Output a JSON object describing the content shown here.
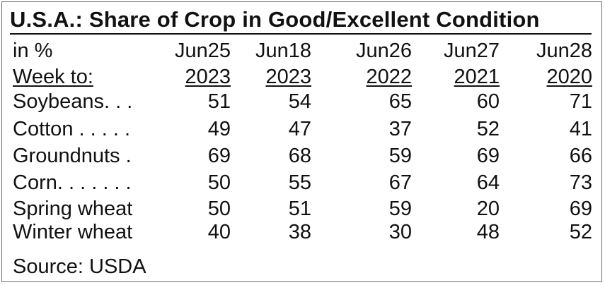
{
  "title": "U.S.A.: Share of Crop in Good/Excellent Condition",
  "header": {
    "unit_label": "in %",
    "week_label": "Week to:",
    "columns": [
      {
        "date": "Jun25",
        "year": "2023"
      },
      {
        "date": "Jun18",
        "year": "2023"
      },
      {
        "date": "Jun26",
        "year": "2022"
      },
      {
        "date": "Jun27",
        "year": "2021"
      },
      {
        "date": "Jun28",
        "year": "2020"
      }
    ]
  },
  "rows": [
    {
      "label": "Soybeans. . .",
      "values": [
        "51",
        "54",
        "65",
        "60",
        "71"
      ]
    },
    {
      "label": "Cotton . . . . .",
      "values": [
        "49",
        "47",
        "37",
        "52",
        "41"
      ]
    },
    {
      "label": "Groundnuts .",
      "values": [
        "69",
        "68",
        "59",
        "69",
        "66"
      ]
    },
    {
      "label": "Corn. . . . . . .",
      "values": [
        "50",
        "55",
        "67",
        "64",
        "73"
      ]
    },
    {
      "label": "Spring wheat",
      "values": [
        "50",
        "51",
        "59",
        "20",
        "69"
      ]
    },
    {
      "label": "Winter wheat",
      "values": [
        "40",
        "38",
        "30",
        "48",
        "52"
      ]
    }
  ],
  "source": "Source: USDA"
}
